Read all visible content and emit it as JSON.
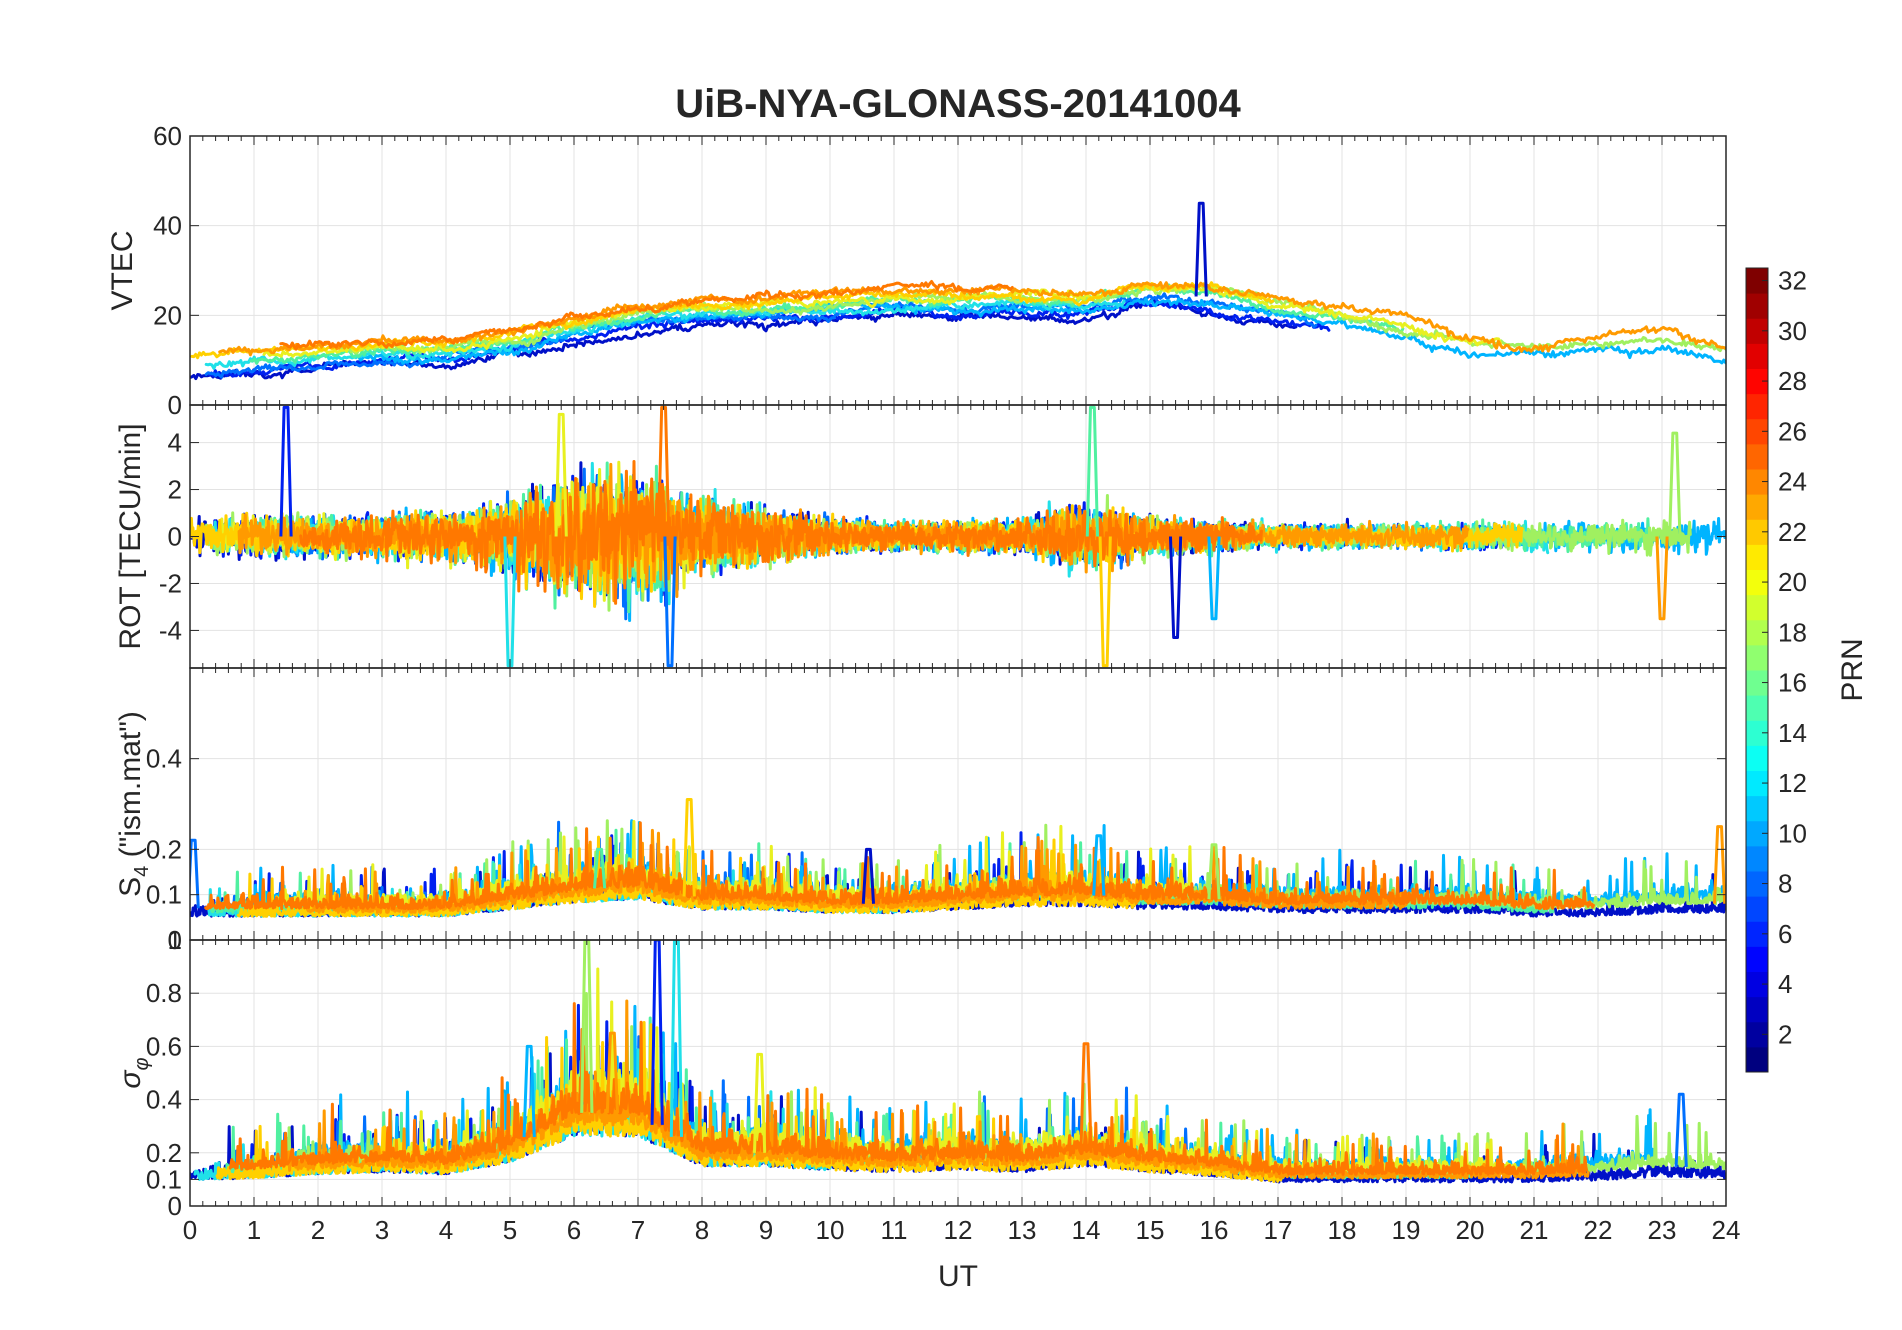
{
  "chart_data": {
    "type": "line",
    "title": "UiB-NYA-GLONASS-20141004",
    "xlabel": "UT",
    "xlim": [
      0,
      24
    ],
    "x_ticks": [
      "0",
      "1",
      "2",
      "3",
      "4",
      "5",
      "6",
      "7",
      "8",
      "9",
      "10",
      "11",
      "12",
      "13",
      "14",
      "15",
      "16",
      "17",
      "18",
      "19",
      "20",
      "21",
      "22",
      "23",
      "24"
    ],
    "grid": true,
    "panels": [
      {
        "id": "vtec",
        "ylabel": "VTEC",
        "ylim": [
          0,
          60
        ],
        "y_ticks": [
          {
            "value": 60,
            "label": "60"
          },
          {
            "value": 40,
            "label": "40"
          },
          {
            "value": 20,
            "label": "20"
          },
          {
            "value": 0,
            "label": "0"
          }
        ],
        "trend": {
          "hours": [
            0,
            1,
            2,
            3,
            4,
            5,
            6,
            7,
            8,
            9,
            10,
            11,
            12,
            13,
            14,
            15,
            16,
            17,
            18,
            19,
            20,
            21,
            22,
            23,
            24
          ],
          "values": [
            9,
            10,
            11,
            12,
            12,
            14,
            17,
            20,
            21,
            21,
            22,
            23,
            23,
            23,
            23,
            25,
            24,
            21,
            19,
            17,
            13,
            12,
            13,
            14,
            11
          ]
        },
        "spikes": [
          {
            "x": 15.8,
            "y": 45
          }
        ]
      },
      {
        "id": "rot",
        "ylabel": "ROT [TECU/min]",
        "ylim": [
          -5.6,
          5.6
        ],
        "y_ticks": [
          {
            "value": 4,
            "label": "4"
          },
          {
            "value": 2,
            "label": "2"
          },
          {
            "value": 0,
            "label": "0"
          },
          {
            "value": -2,
            "label": "-2"
          },
          {
            "value": -4,
            "label": "-4"
          }
        ],
        "activity": {
          "hours": [
            0,
            1,
            2,
            3,
            4,
            5,
            6,
            7,
            8,
            9,
            10,
            11,
            12,
            13,
            14,
            15,
            16,
            17,
            18,
            19,
            20,
            21,
            22,
            23,
            24
          ],
          "amplitude": [
            1.2,
            1.4,
            1.3,
            1.5,
            1.6,
            2.5,
            4.0,
            4.5,
            2.5,
            1.8,
            1.2,
            1.0,
            1.0,
            1.1,
            2.5,
            1.3,
            1.0,
            0.8,
            0.8,
            0.8,
            0.9,
            0.9,
            1.0,
            1.2,
            1.1
          ]
        },
        "spikes": [
          {
            "x": 1.5,
            "y": 5.5
          },
          {
            "x": 5.0,
            "y": -5.5
          },
          {
            "x": 5.8,
            "y": 5.2
          },
          {
            "x": 7.4,
            "y": 5.5
          },
          {
            "x": 7.5,
            "y": -5.5
          },
          {
            "x": 14.1,
            "y": 5.5
          },
          {
            "x": 14.3,
            "y": -5.5
          },
          {
            "x": 15.4,
            "y": -4.3
          },
          {
            "x": 16.0,
            "y": -3.5
          },
          {
            "x": 23.2,
            "y": 4.4
          },
          {
            "x": 23.0,
            "y": -3.5
          }
        ]
      },
      {
        "id": "s4",
        "ylabel": "S4 (\"ism.mat\")",
        "ylabel_main": "S",
        "ylabel_sub": "4",
        "ylabel_rest": " (\"ism.mat\")",
        "ylim": [
          0,
          0.6
        ],
        "y_ticks": [
          {
            "value": 0.4,
            "label": "0.4"
          },
          {
            "value": 0.2,
            "label": "0.2"
          },
          {
            "value": 0.1,
            "label": "0.1"
          },
          {
            "value": 0,
            "label": "0"
          }
        ],
        "baseline": {
          "hours": [
            0,
            1,
            2,
            3,
            4,
            5,
            6,
            7,
            8,
            9,
            10,
            11,
            12,
            13,
            14,
            15,
            16,
            17,
            18,
            19,
            20,
            21,
            22,
            23,
            24
          ],
          "values": [
            0.07,
            0.07,
            0.07,
            0.07,
            0.07,
            0.09,
            0.11,
            0.12,
            0.09,
            0.09,
            0.08,
            0.08,
            0.09,
            0.1,
            0.1,
            0.09,
            0.09,
            0.08,
            0.08,
            0.08,
            0.08,
            0.07,
            0.07,
            0.08,
            0.08
          ]
        },
        "spikes": [
          {
            "x": 0.05,
            "y": 0.22
          },
          {
            "x": 6.4,
            "y": 0.2
          },
          {
            "x": 7.8,
            "y": 0.31
          },
          {
            "x": 10.6,
            "y": 0.2
          },
          {
            "x": 14.2,
            "y": 0.23
          },
          {
            "x": 16.0,
            "y": 0.21
          },
          {
            "x": 23.9,
            "y": 0.25
          }
        ]
      },
      {
        "id": "sigma",
        "ylabel": "σφ",
        "ylabel_main": "σ",
        "ylabel_sub": "φ",
        "ylim": [
          0,
          1
        ],
        "y_ticks": [
          {
            "value": 1,
            "label": "1"
          },
          {
            "value": 0.8,
            "label": "0.8"
          },
          {
            "value": 0.6,
            "label": "0.6"
          },
          {
            "value": 0.4,
            "label": "0.4"
          },
          {
            "value": 0.2,
            "label": "0.2"
          },
          {
            "value": 0.1,
            "label": "0.1"
          },
          {
            "value": 0,
            "label": "0"
          }
        ],
        "baseline": {
          "hours": [
            0,
            1,
            2,
            3,
            4,
            5,
            6,
            7,
            8,
            9,
            10,
            11,
            12,
            13,
            14,
            15,
            16,
            17,
            18,
            19,
            20,
            21,
            22,
            23,
            24
          ],
          "values": [
            0.13,
            0.14,
            0.16,
            0.17,
            0.16,
            0.22,
            0.35,
            0.35,
            0.2,
            0.2,
            0.18,
            0.17,
            0.18,
            0.17,
            0.2,
            0.17,
            0.15,
            0.12,
            0.12,
            0.12,
            0.12,
            0.12,
            0.13,
            0.15,
            0.14
          ]
        },
        "spikes": [
          {
            "x": 5.3,
            "y": 0.6
          },
          {
            "x": 6.2,
            "y": 1.0
          },
          {
            "x": 6.6,
            "y": 0.65
          },
          {
            "x": 7.3,
            "y": 1.0
          },
          {
            "x": 7.6,
            "y": 1.0
          },
          {
            "x": 8.9,
            "y": 0.57
          },
          {
            "x": 14.0,
            "y": 0.61
          },
          {
            "x": 23.3,
            "y": 0.42
          }
        ]
      }
    ],
    "colorbar": {
      "label": "PRN",
      "range": [
        1,
        32
      ],
      "ticks": [
        "2",
        "4",
        "6",
        "8",
        "10",
        "12",
        "14",
        "16",
        "18",
        "20",
        "22",
        "24",
        "26",
        "28",
        "30",
        "32"
      ],
      "colormap": "jet"
    },
    "series": [
      {
        "prn": 2,
        "color": "#0010c8"
      },
      {
        "prn": 4,
        "color": "#0020f0"
      },
      {
        "prn": 7,
        "color": "#0070ff"
      },
      {
        "prn": 10,
        "color": "#00b4ff"
      },
      {
        "prn": 12,
        "color": "#20e0e8"
      },
      {
        "prn": 14,
        "color": "#50f0a0"
      },
      {
        "prn": 17,
        "color": "#a0f060"
      },
      {
        "prn": 19,
        "color": "#e8f020"
      },
      {
        "prn": 21,
        "color": "#ffd000"
      },
      {
        "prn": 23,
        "color": "#ff9a00"
      },
      {
        "prn": 24,
        "color": "#ff7800"
      }
    ],
    "jet_colors": [
      "#00007f",
      "#0000ff",
      "#007fff",
      "#00ffff",
      "#7fff7f",
      "#ffff00",
      "#ff7f00",
      "#ff0000",
      "#7f0000"
    ]
  }
}
